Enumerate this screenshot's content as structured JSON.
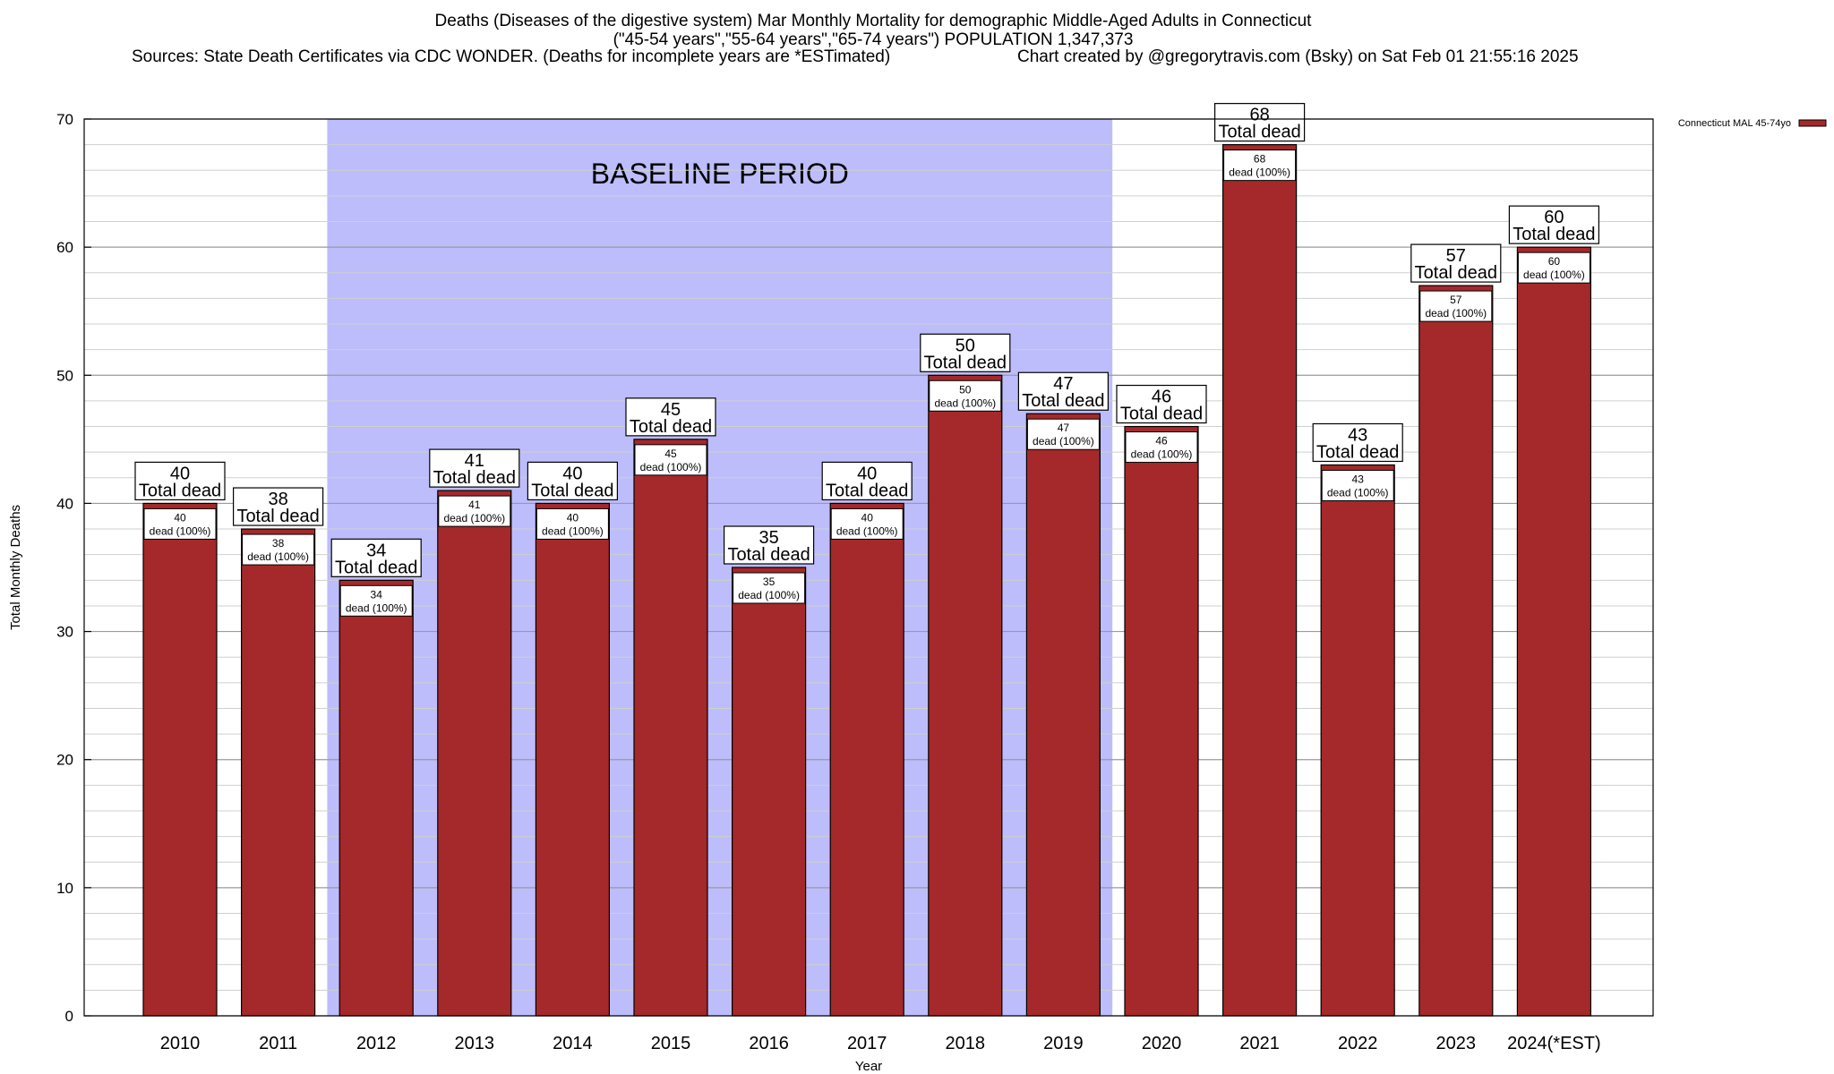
{
  "chart_data": {
    "type": "bar",
    "title": "Deaths (Diseases of the digestive system) Mar Monthly Mortality for demographic Middle-Aged Adults in Connecticut",
    "subtitle": "(\"45-54 years\",\"55-64 years\",\"65-74 years\") POPULATION 1,347,373",
    "sources": "Sources: State Death Certificates via CDC WONDER. (Deaths for incomplete years are *ESTimated)",
    "credit": "Chart created by @gregorytravis.com (Bsky) on Sat Feb 01 21:55:16 2025",
    "xlabel": "Year",
    "ylabel": "Total Monthly Deaths",
    "ylim": [
      0,
      70
    ],
    "yticks": [
      0,
      10,
      20,
      30,
      40,
      50,
      60,
      70
    ],
    "minor_grid_step": 2,
    "grid": true,
    "legend_position": "top-right",
    "baseline": {
      "label": "BASELINE PERIOD",
      "from": "2012",
      "to": "2019",
      "color": "#bdbdfc"
    },
    "bar_color": "#a5292a",
    "total_label": "Total dead",
    "inner_label": "dead (100%)",
    "categories": [
      "2010",
      "2011",
      "2012",
      "2013",
      "2014",
      "2015",
      "2016",
      "2017",
      "2018",
      "2019",
      "2020",
      "2021",
      "2022",
      "2023",
      "2024(*EST)"
    ],
    "series": [
      {
        "name": "Connecticut MAL 45-74yo",
        "values": [
          40,
          38,
          34,
          41,
          40,
          45,
          35,
          40,
          50,
          47,
          46,
          68,
          43,
          57,
          60
        ]
      }
    ]
  }
}
